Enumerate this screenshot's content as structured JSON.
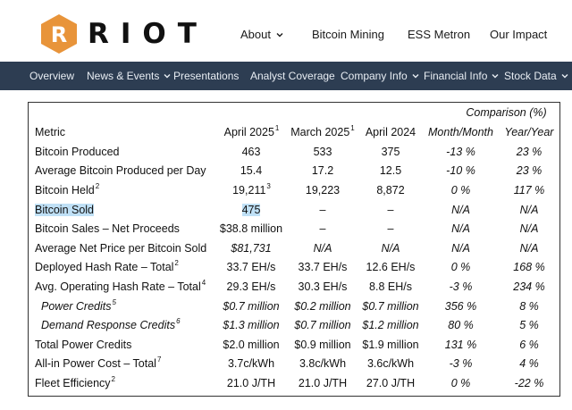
{
  "brand": {
    "name": "RIOT",
    "logo_letter": "R",
    "accent": "#e8943a"
  },
  "top_nav": [
    {
      "label": "About",
      "dropdown": true
    },
    {
      "label": "Bitcoin Mining",
      "dropdown": false
    },
    {
      "label": "ESS Metron",
      "dropdown": false
    },
    {
      "label": "Our Impact",
      "dropdown": false
    }
  ],
  "sub_nav": [
    {
      "label": "Overview",
      "dropdown": false
    },
    {
      "label": "News & Events",
      "dropdown": true
    },
    {
      "label": "Presentations",
      "dropdown": false
    },
    {
      "label": "Analyst Coverage",
      "dropdown": false
    },
    {
      "label": "Company Info",
      "dropdown": true
    },
    {
      "label": "Financial Info",
      "dropdown": true
    },
    {
      "label": "Stock Data",
      "dropdown": true
    }
  ],
  "table": {
    "comparison_label": "Comparison (%)",
    "headers": {
      "metric": "Metric",
      "apr25": "April 2025",
      "apr25_note": "1",
      "mar25": "March 2025",
      "mar25_note": "1",
      "apr24": "April 2024",
      "mom": "Month/Month",
      "yoy": "Year/Year"
    },
    "rows": [
      {
        "metric": "Bitcoin Produced",
        "note": "",
        "apr25": "463",
        "apr25_note": "",
        "mar25": "533",
        "apr24": "375",
        "mom": "-13 %",
        "yoy": "23 %"
      },
      {
        "metric": "Average Bitcoin Produced per Day",
        "note": "",
        "apr25": "15.4",
        "apr25_note": "",
        "mar25": "17.2",
        "apr24": "12.5",
        "mom": "-10 %",
        "yoy": "23 %"
      },
      {
        "metric": "Bitcoin Held",
        "note": "2",
        "apr25": "19,211",
        "apr25_note": "3",
        "mar25": "19,223",
        "apr24": "8,872",
        "mom": "0 %",
        "yoy": "117 %"
      },
      {
        "metric": "Bitcoin Sold",
        "note": "",
        "apr25": "475",
        "apr25_note": "",
        "mar25": "–",
        "apr24": "–",
        "mom": "N/A",
        "yoy": "N/A"
      },
      {
        "metric": "Bitcoin Sales – Net Proceeds",
        "note": "",
        "apr25": "$38.8 million",
        "apr25_note": "",
        "mar25": "–",
        "apr24": "–",
        "mom": "N/A",
        "yoy": "N/A"
      },
      {
        "metric": "Average Net Price per Bitcoin Sold",
        "note": "",
        "apr25": "$81,731",
        "apr25_note": "",
        "mar25": "N/A",
        "apr24": "N/A",
        "mom": "N/A",
        "yoy": "N/A"
      },
      {
        "metric": "Deployed Hash Rate – Total",
        "note": "2",
        "apr25": "33.7 EH/s",
        "apr25_note": "",
        "mar25": "33.7 EH/s",
        "apr24": "12.6 EH/s",
        "mom": "0 %",
        "yoy": "168 %"
      },
      {
        "metric": "Avg. Operating Hash Rate – Total",
        "note": "4",
        "apr25": "29.3 EH/s",
        "apr25_note": "",
        "mar25": "30.3 EH/s",
        "apr24": "8.8 EH/s",
        "mom": "-3 %",
        "yoy": "234 %"
      },
      {
        "metric": "Power Credits",
        "note": "5",
        "apr25": "$0.7 million",
        "apr25_note": "",
        "mar25": "$0.2 million",
        "apr24": "$0.7 million",
        "mom": "356 %",
        "yoy": "8 %"
      },
      {
        "metric": "Demand Response Credits",
        "note": "6",
        "apr25": "$1.3 million",
        "apr25_note": "",
        "mar25": "$0.7 million",
        "apr24": "$1.2 million",
        "mom": "80 %",
        "yoy": "5 %"
      },
      {
        "metric": "Total Power Credits",
        "note": "",
        "apr25": "$2.0 million",
        "apr25_note": "",
        "mar25": "$0.9 million",
        "apr24": "$1.9 million",
        "mom": "131 %",
        "yoy": "6 %"
      },
      {
        "metric": "All-in Power Cost – Total",
        "note": "7",
        "apr25": "3.7c/kWh",
        "apr25_note": "",
        "mar25": "3.8c/kWh",
        "apr24": "3.6c/kWh",
        "mom": "-3 %",
        "yoy": "4 %"
      },
      {
        "metric": "Fleet Efficiency",
        "note": "2",
        "apr25": "21.0 J/TH",
        "apr25_note": "",
        "mar25": "21.0 J/TH",
        "apr24": "27.0 J/TH",
        "mom": "0 %",
        "yoy": "-22 %"
      }
    ]
  }
}
